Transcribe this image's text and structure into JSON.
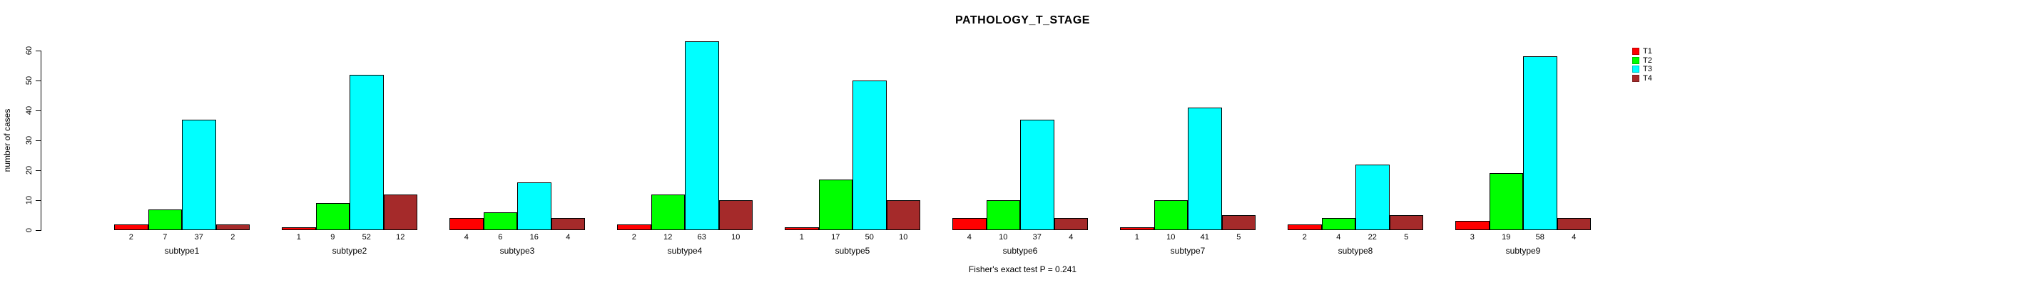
{
  "chart_data": {
    "type": "bar",
    "title": "PATHOLOGY_T_STAGE",
    "ylabel": "number of cases",
    "xlabel": "",
    "categories": [
      "subtype1",
      "subtype2",
      "subtype3",
      "subtype4",
      "subtype5",
      "subtype6",
      "subtype7",
      "subtype8",
      "subtype9"
    ],
    "series": [
      {
        "name": "T1",
        "color": "#FF0000",
        "values": [
          2,
          1,
          4,
          2,
          1,
          4,
          1,
          2,
          3
        ]
      },
      {
        "name": "T2",
        "color": "#00FF00",
        "values": [
          7,
          9,
          6,
          12,
          17,
          10,
          10,
          4,
          19
        ]
      },
      {
        "name": "T3",
        "color": "#00FFFF",
        "values": [
          37,
          52,
          16,
          63,
          50,
          37,
          41,
          22,
          58
        ]
      },
      {
        "name": "T4",
        "color": "#A52A2A",
        "values": [
          2,
          12,
          4,
          10,
          10,
          4,
          5,
          5,
          4
        ]
      }
    ],
    "value_labels_shown": true,
    "yticks": [
      0,
      10,
      20,
      30,
      40,
      50,
      60
    ],
    "ylim": [
      0,
      63
    ],
    "grid": false,
    "legend": {
      "position": "top-right",
      "entries": [
        "T1",
        "T2",
        "T3",
        "T4"
      ]
    },
    "annotation": "Fisher's exact test P = 0.241",
    "background": "#FFFFFF"
  }
}
